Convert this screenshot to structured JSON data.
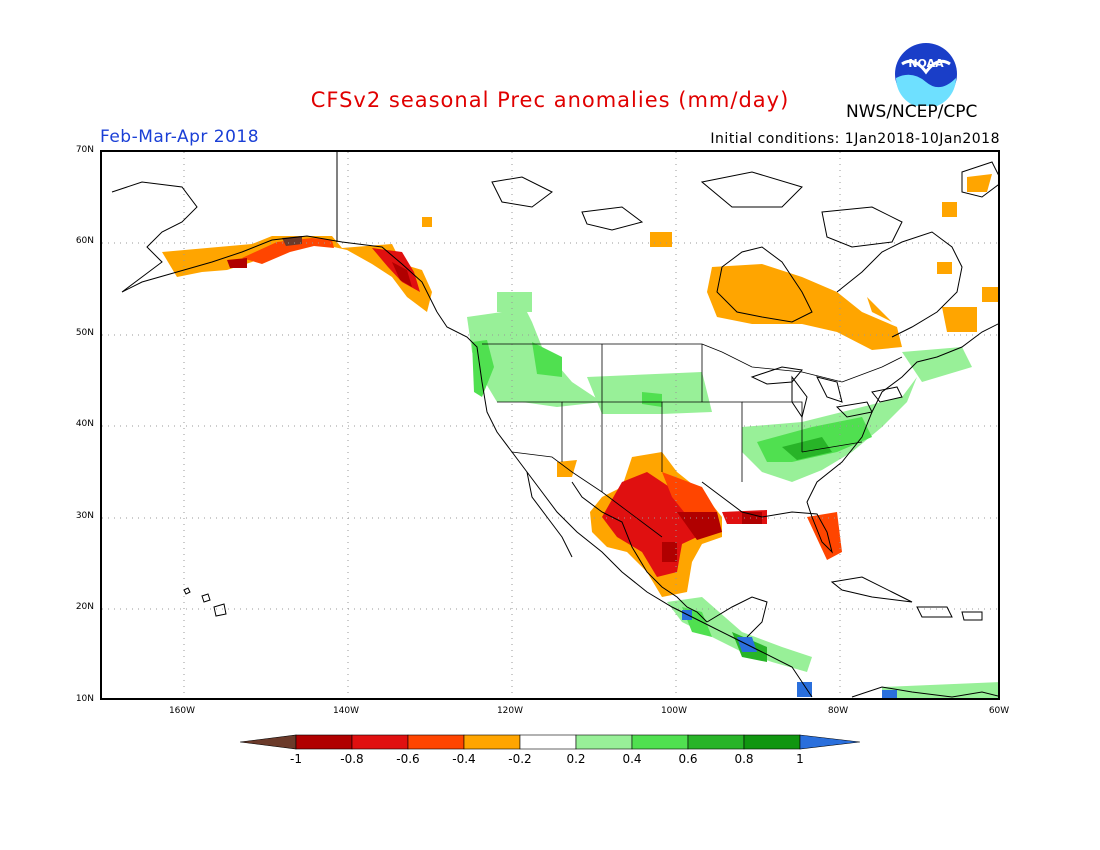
{
  "header": {
    "title": "CFSv2 seasonal Prec anomalies (mm/day)",
    "period": "Feb-Mar-Apr 2018",
    "initial_conditions": "Initial conditions: 1Jan2018-10Jan2018",
    "agency": "NWS/NCEP/CPC",
    "logo_text": "NOAA"
  },
  "map": {
    "lat_labels": [
      "70N",
      "60N",
      "50N",
      "40N",
      "30N",
      "20N",
      "10N"
    ],
    "lon_labels": [
      "160W",
      "140W",
      "120W",
      "100W",
      "80W",
      "60W"
    ]
  },
  "colorbar": {
    "labels": [
      "-1",
      "-0.8",
      "-0.6",
      "-0.4",
      "-0.2",
      "0.2",
      "0.4",
      "0.6",
      "0.8",
      "1"
    ],
    "colors": [
      "#6b3a2a",
      "#b00000",
      "#e01010",
      "#ff4500",
      "#ffa500",
      "#ffffff",
      "#98f098",
      "#50e050",
      "#28b428",
      "#109610",
      "#2a6fdc"
    ]
  },
  "colors": {
    "brown": "#6b3a2a",
    "dark_red": "#b00000",
    "red": "#e01010",
    "orange_red": "#ff4500",
    "orange": "#ffa500",
    "light_green": "#98f098",
    "green": "#50e050",
    "mid_green": "#28b428",
    "dark_green": "#109610",
    "blue": "#2a6fdc"
  }
}
